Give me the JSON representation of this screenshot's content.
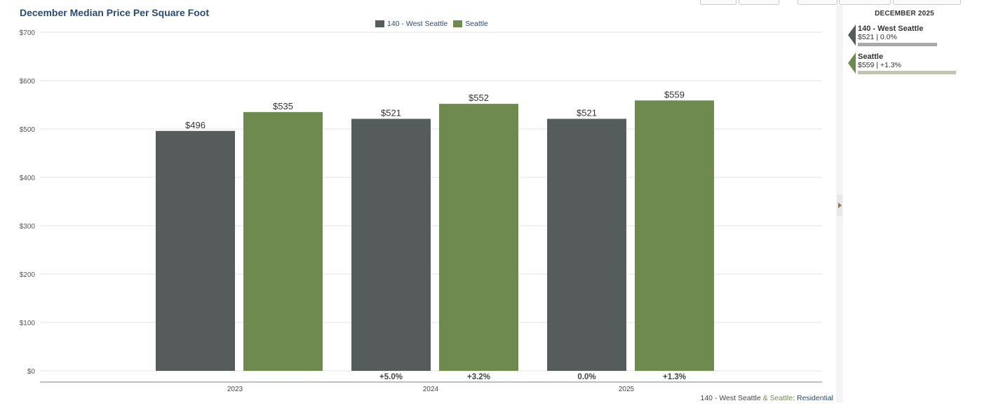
{
  "title": "December Median Price Per Square Foot",
  "colors": {
    "west_seattle": "#555c5b",
    "seattle": "#6f8a4f",
    "west_seattle_light": "#a8aba9",
    "seattle_light": "#bcc7ae"
  },
  "chart_data": {
    "type": "bar",
    "title": "December Median Price Per Square Foot",
    "categories": [
      "2023",
      "2024",
      "2025"
    ],
    "series": [
      {
        "name": "140 - West Seattle",
        "values": [
          496,
          521,
          521
        ],
        "labels": [
          "$496",
          "$521",
          "$521"
        ],
        "changes": [
          "",
          "+5.0%",
          "0.0%"
        ]
      },
      {
        "name": "Seattle",
        "values": [
          535,
          552,
          559
        ],
        "labels": [
          "$535",
          "$552",
          "$559"
        ],
        "changes": [
          "",
          "+3.2%",
          "+1.3%"
        ]
      }
    ],
    "ylim": [
      0,
      700
    ],
    "yticks": [
      "$0",
      "$100",
      "$200",
      "$300",
      "$400",
      "$500",
      "$600",
      "$700"
    ],
    "legend": "top-center",
    "grid": true
  },
  "footer": {
    "part1": "140 - West Seattle",
    "amp": " & ",
    "part2": "Seattle",
    "part3": ": Residential"
  },
  "side_panel": {
    "header": "DECEMBER 2025",
    "items": [
      {
        "name": "140 - West Seattle",
        "value": "$521 | 0.0%",
        "fraction": 0.75
      },
      {
        "name": "Seattle",
        "value": "$559 | +1.3%",
        "fraction": 0.93
      }
    ]
  }
}
